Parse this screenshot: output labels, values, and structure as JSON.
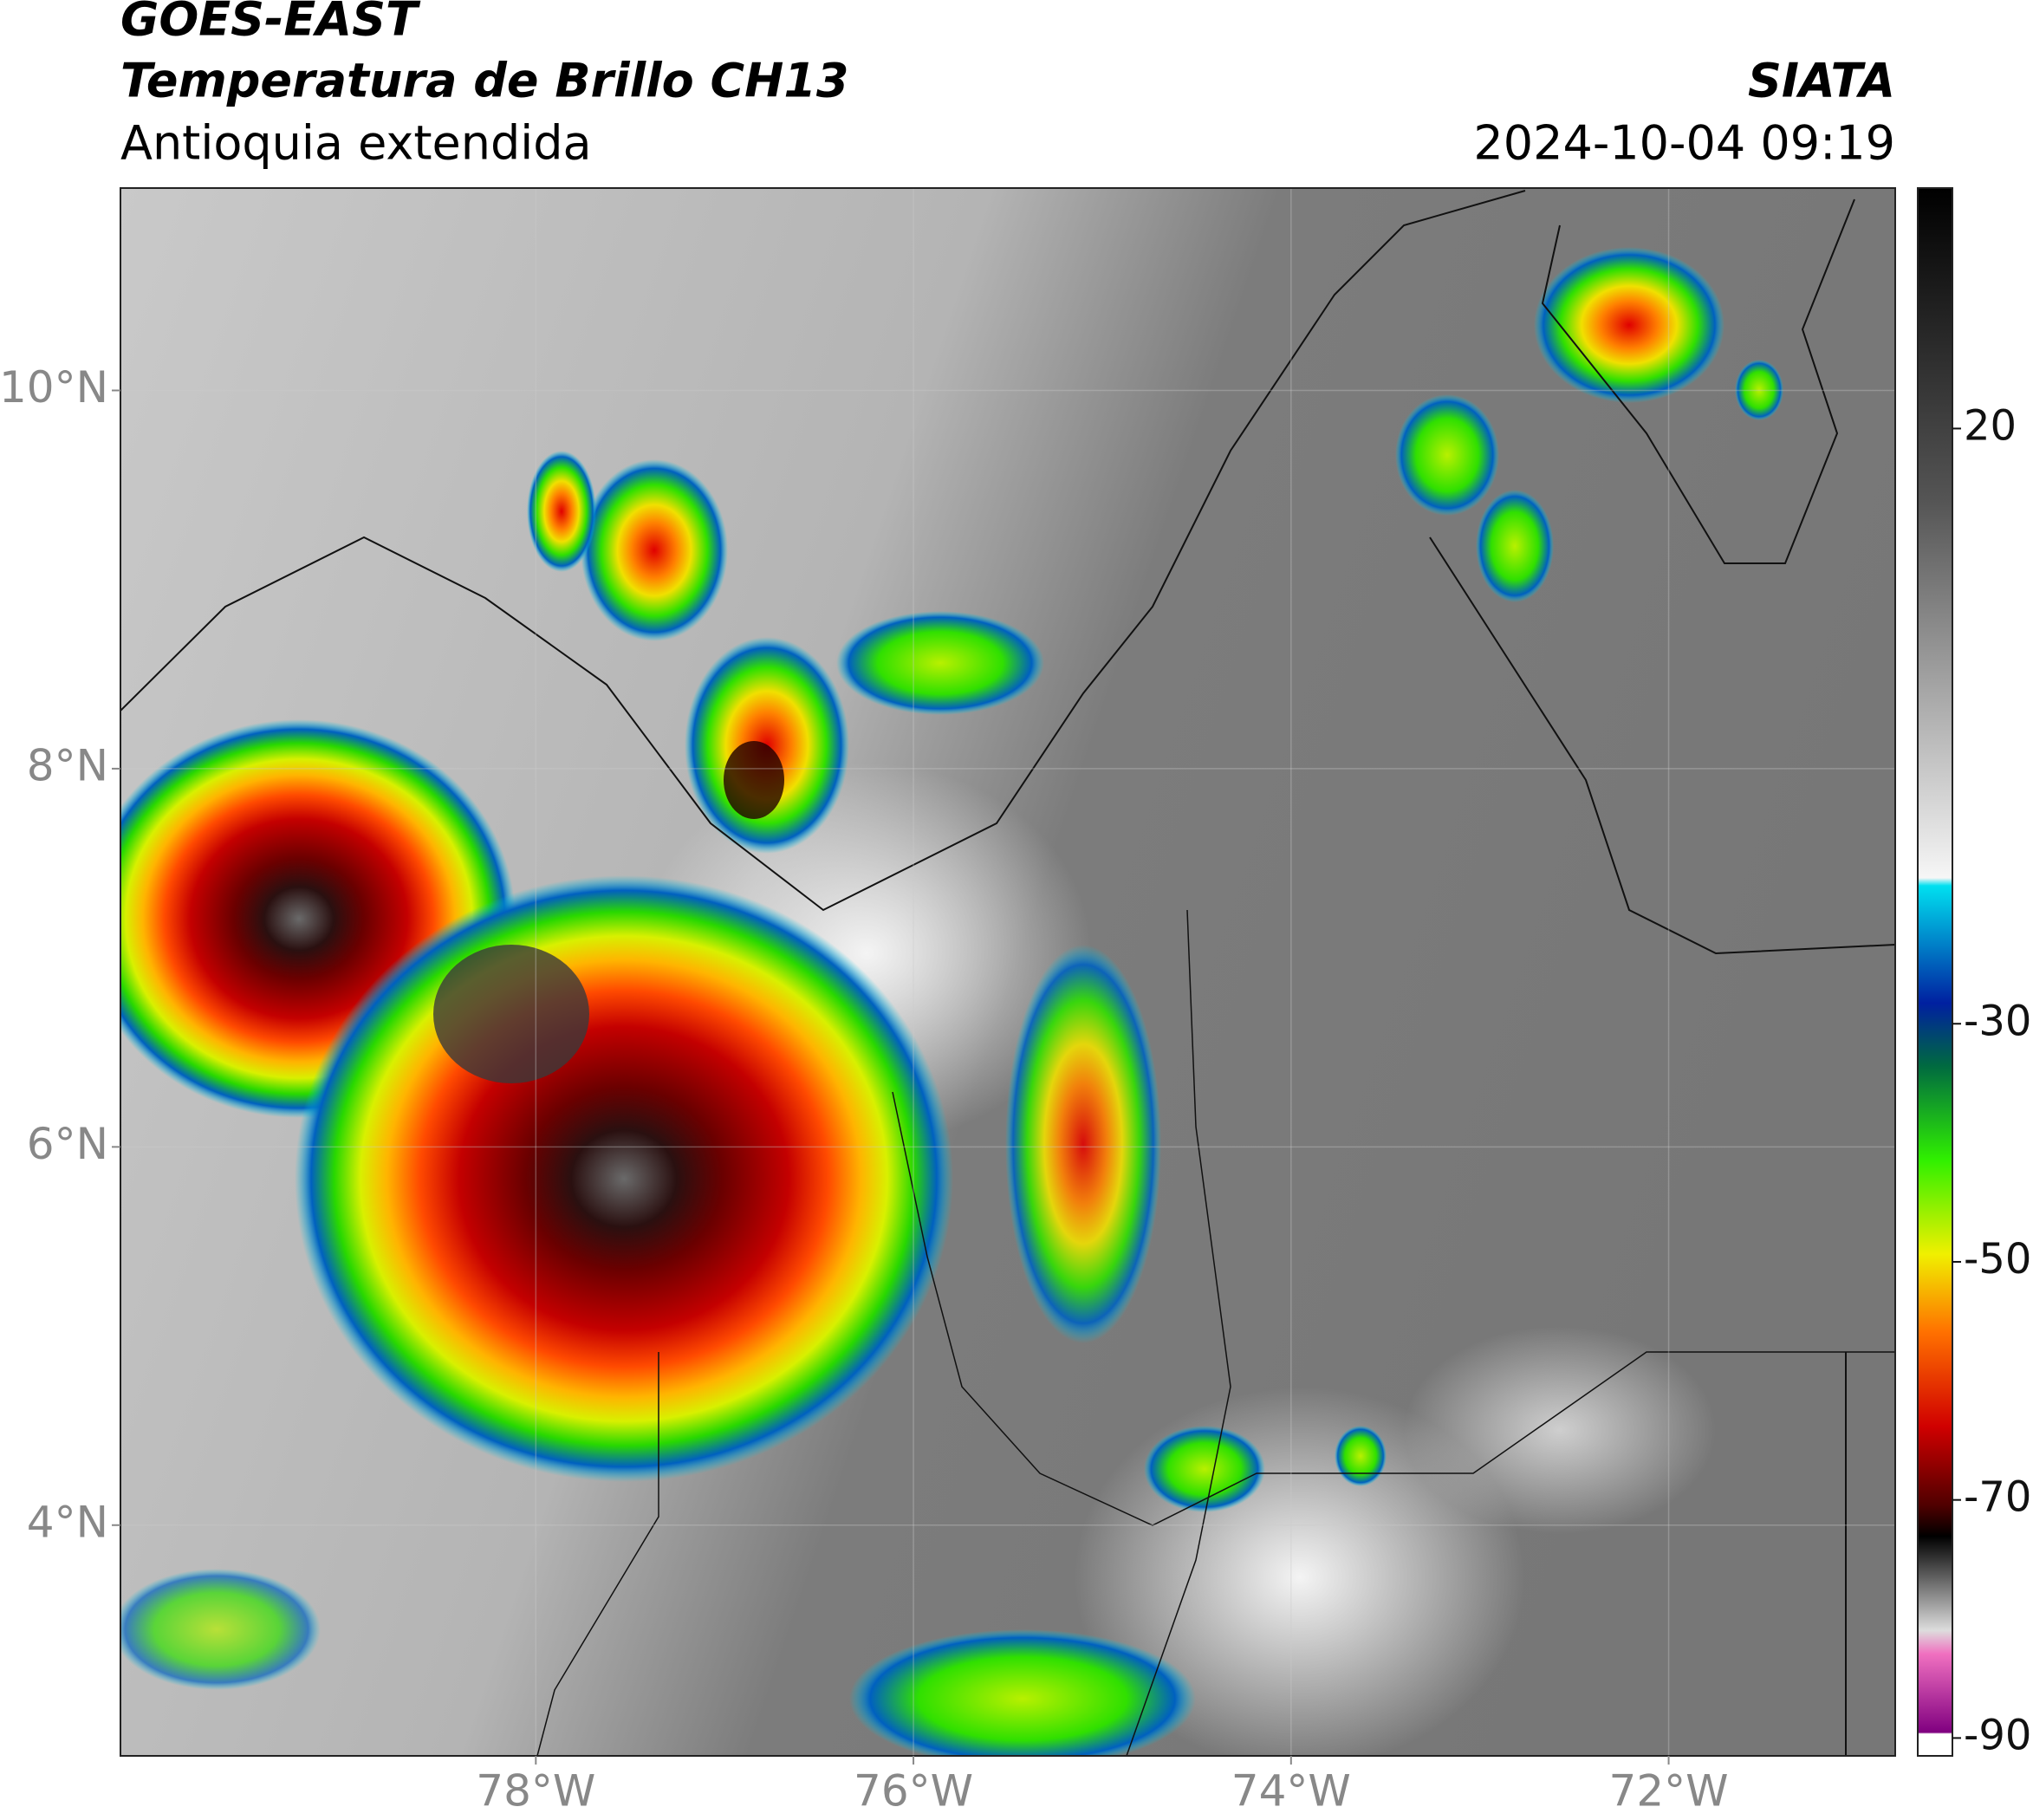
{
  "header": {
    "title": "GOES-EAST",
    "subtitle": "Temperatura de Brillo CH13",
    "region": "Antioquia extendida",
    "source": "SIATA",
    "datetime": "2024-10-04 09:19"
  },
  "map": {
    "xlim": [
      -80.2,
      -70.8
    ],
    "ylim": [
      2.78,
      11.07
    ],
    "xticks": [
      {
        "value": -78,
        "label": "78°W"
      },
      {
        "value": -76,
        "label": "76°W"
      },
      {
        "value": -74,
        "label": "74°W"
      },
      {
        "value": -72,
        "label": "72°W"
      }
    ],
    "yticks": [
      {
        "value": 10,
        "label": "10°N"
      },
      {
        "value": 8,
        "label": "8°N"
      },
      {
        "value": 6,
        "label": "6°N"
      },
      {
        "value": 4,
        "label": "4°N"
      }
    ],
    "grid": true
  },
  "colorbar": {
    "lim": [
      -91.5,
      40.2
    ],
    "ticks": [
      20,
      -30,
      -50,
      -70,
      -90
    ]
  }
}
